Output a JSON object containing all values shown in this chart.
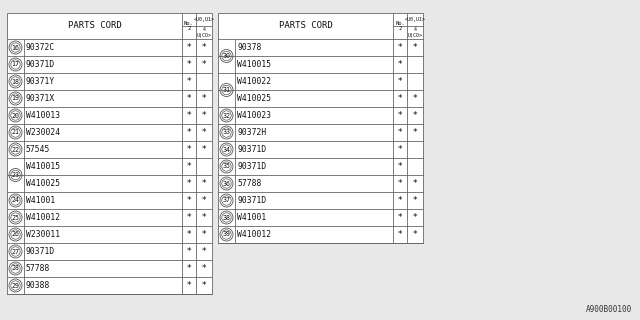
{
  "watermark": "A900B00100",
  "bg_color": "#e8e8e8",
  "font_color": "#111111",
  "line_color": "#666666",
  "left_table": {
    "rows": [
      {
        "num": "16",
        "part": "90372C",
        "c1": "*",
        "c2": "*",
        "grp": 0
      },
      {
        "num": "17",
        "part": "90371D",
        "c1": "*",
        "c2": "*",
        "grp": 0
      },
      {
        "num": "18",
        "part": "90371Y",
        "c1": "*",
        "c2": "",
        "grp": 0
      },
      {
        "num": "19",
        "part": "90371X",
        "c1": "*",
        "c2": "*",
        "grp": 0
      },
      {
        "num": "20",
        "part": "W410013",
        "c1": "*",
        "c2": "*",
        "grp": 0
      },
      {
        "num": "21",
        "part": "W230024",
        "c1": "*",
        "c2": "*",
        "grp": 0
      },
      {
        "num": "22",
        "part": "57545",
        "c1": "*",
        "c2": "*",
        "grp": 0
      },
      {
        "num": "23",
        "part": "W410015",
        "c1": "*",
        "c2": "",
        "grp": 23
      },
      {
        "num": "",
        "part": "W410025",
        "c1": "*",
        "c2": "*",
        "grp": 23
      },
      {
        "num": "24",
        "part": "W41001",
        "c1": "*",
        "c2": "*",
        "grp": 0
      },
      {
        "num": "25",
        "part": "W410012",
        "c1": "*",
        "c2": "*",
        "grp": 0
      },
      {
        "num": "26",
        "part": "W230011",
        "c1": "*",
        "c2": "*",
        "grp": 0
      },
      {
        "num": "27",
        "part": "90371D",
        "c1": "*",
        "c2": "*",
        "grp": 0
      },
      {
        "num": "28",
        "part": "57788",
        "c1": "*",
        "c2": "*",
        "grp": 0
      },
      {
        "num": "29",
        "part": "90388",
        "c1": "*",
        "c2": "*",
        "grp": 0
      }
    ]
  },
  "right_table": {
    "rows": [
      {
        "num": "30",
        "part": "90378",
        "c1": "*",
        "c2": "*",
        "grp": 30
      },
      {
        "num": "",
        "part": "W410015",
        "c1": "*",
        "c2": "",
        "grp": 30
      },
      {
        "num": "31",
        "part": "W410022",
        "c1": "*",
        "c2": "",
        "grp": 31
      },
      {
        "num": "",
        "part": "W410025",
        "c1": "*",
        "c2": "*",
        "grp": 31
      },
      {
        "num": "32",
        "part": "W410023",
        "c1": "*",
        "c2": "*",
        "grp": 0
      },
      {
        "num": "33",
        "part": "90372H",
        "c1": "*",
        "c2": "*",
        "grp": 0
      },
      {
        "num": "34",
        "part": "90371D",
        "c1": "*",
        "c2": "",
        "grp": 0
      },
      {
        "num": "35",
        "part": "90371D",
        "c1": "*",
        "c2": "",
        "grp": 0
      },
      {
        "num": "36",
        "part": "57788",
        "c1": "*",
        "c2": "*",
        "grp": 0
      },
      {
        "num": "37",
        "part": "90371D",
        "c1": "*",
        "c2": "*",
        "grp": 0
      },
      {
        "num": "38",
        "part": "W41001",
        "c1": "*",
        "c2": "*",
        "grp": 0
      },
      {
        "num": "39",
        "part": "W410012",
        "c1": "*",
        "c2": "*",
        "grp": 0
      }
    ]
  }
}
